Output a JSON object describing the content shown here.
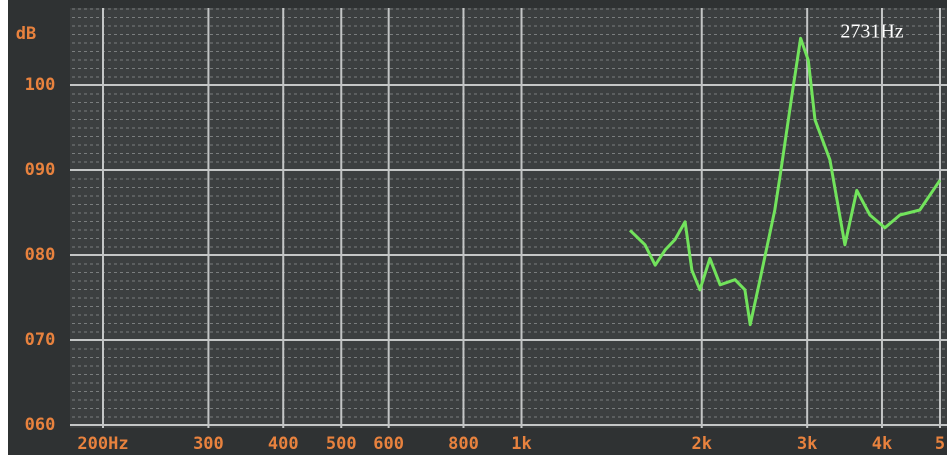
{
  "chart_data": {
    "type": "line",
    "y_label": "dB",
    "annotation": "2731Hz",
    "log_x": true,
    "grid": true,
    "xlim": [
      200,
      5000
    ],
    "ylim": [
      60,
      109
    ],
    "xticks": [
      {
        "value": 200,
        "label": "200Hz"
      },
      300,
      400,
      500,
      600,
      800,
      {
        "value": 1000,
        "label": "1k"
      },
      {
        "value": 2000,
        "label": "2k"
      },
      {
        "value": 3000,
        "label": "3k"
      },
      {
        "value": 4000,
        "label": "4k"
      },
      {
        "value": 5000,
        "label": "5"
      }
    ],
    "yticks": [
      {
        "value": 60,
        "label": "060"
      },
      {
        "value": 70,
        "label": "070"
      },
      {
        "value": 80,
        "label": "080"
      },
      {
        "value": 90,
        "label": "090"
      },
      {
        "value": 100,
        "label": "100"
      }
    ],
    "x": [
      1518,
      1608,
      1672,
      1738,
      1804,
      1876,
      1926,
      1986,
      2064,
      2146,
      2273,
      2361,
      2410,
      2502,
      2649,
      2704,
      2838,
      2925,
      3013,
      3092,
      3274,
      3468,
      3631,
      3818,
      4045,
      4285,
      4627,
      5000
    ],
    "series": [
      {
        "color": "#72e35c",
        "values": [
          82.9,
          81.2,
          78.8,
          80.6,
          81.8,
          83.9,
          78.2,
          75.9,
          79.6,
          76.5,
          77.1,
          75.9,
          71.8,
          77.1,
          85.3,
          89.4,
          99.4,
          105.5,
          102.9,
          95.9,
          91.2,
          81.2,
          87.6,
          84.7,
          83.2,
          84.7,
          85.3,
          88.8
        ]
      }
    ]
  }
}
